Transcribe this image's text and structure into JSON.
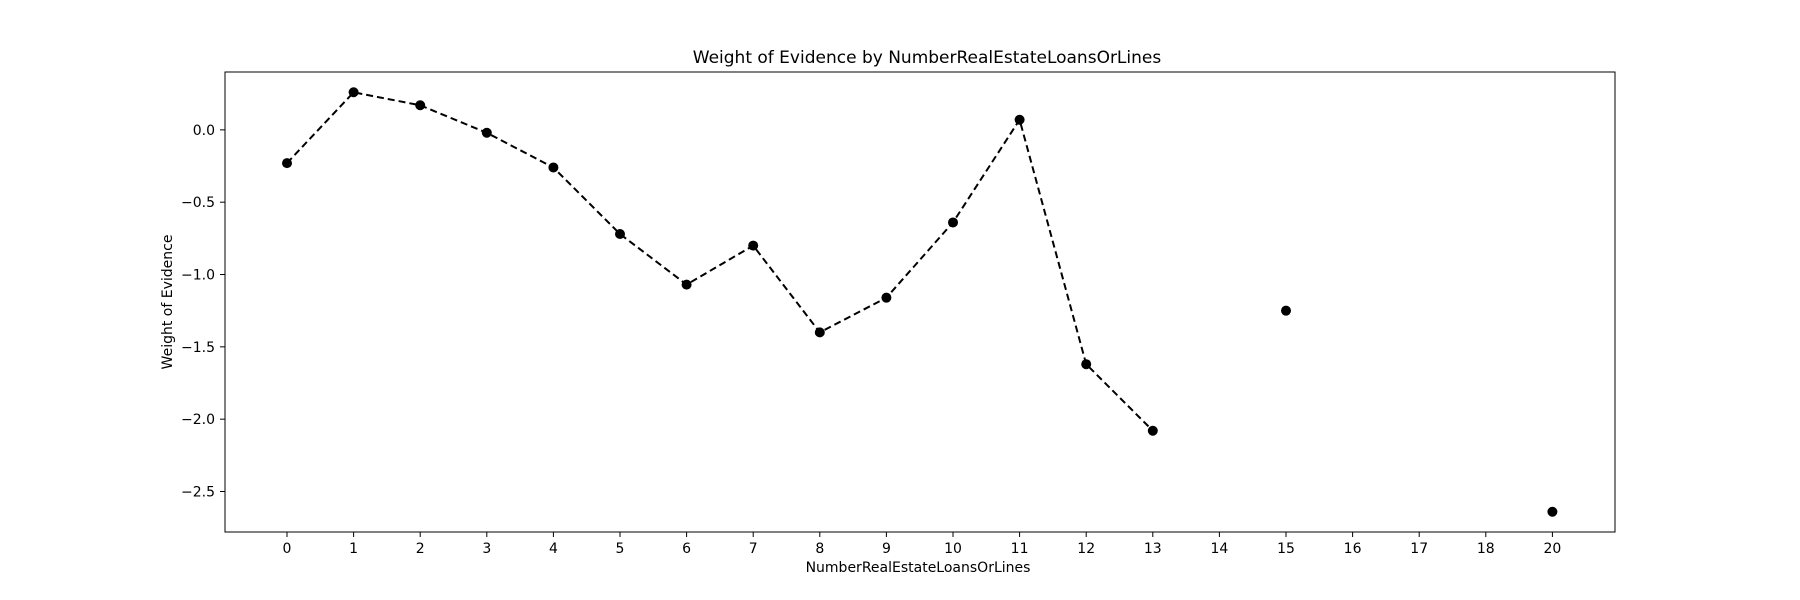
{
  "chart_data": {
    "type": "line",
    "title": "Weight of Evidence by NumberRealEstateLoansOrLines",
    "xlabel": "NumberRealEstateLoansOrLines",
    "ylabel": "Weight of Evidence",
    "categories": [
      "0",
      "1",
      "2",
      "3",
      "4",
      "5",
      "6",
      "7",
      "8",
      "9",
      "10",
      "11",
      "12",
      "13",
      "14",
      "15",
      "16",
      "17",
      "18",
      "20"
    ],
    "values": [
      -0.23,
      0.26,
      0.17,
      -0.02,
      -0.26,
      -0.72,
      -1.07,
      -0.8,
      -1.4,
      -1.16,
      -0.64,
      0.07,
      -1.62,
      -2.08,
      null,
      -1.25,
      null,
      null,
      null,
      -2.64
    ],
    "yticks": [
      0.0,
      -0.5,
      -1.0,
      -1.5,
      -2.0,
      -2.5
    ],
    "ytick_labels": [
      "0.0",
      "−0.5",
      "−1.0",
      "−1.5",
      "−2.0",
      "−2.5"
    ],
    "ylim": [
      -2.78,
      0.4
    ],
    "line_style": "dashed",
    "marker": "circle",
    "color": "#000000",
    "grid": false,
    "legend": "none"
  }
}
